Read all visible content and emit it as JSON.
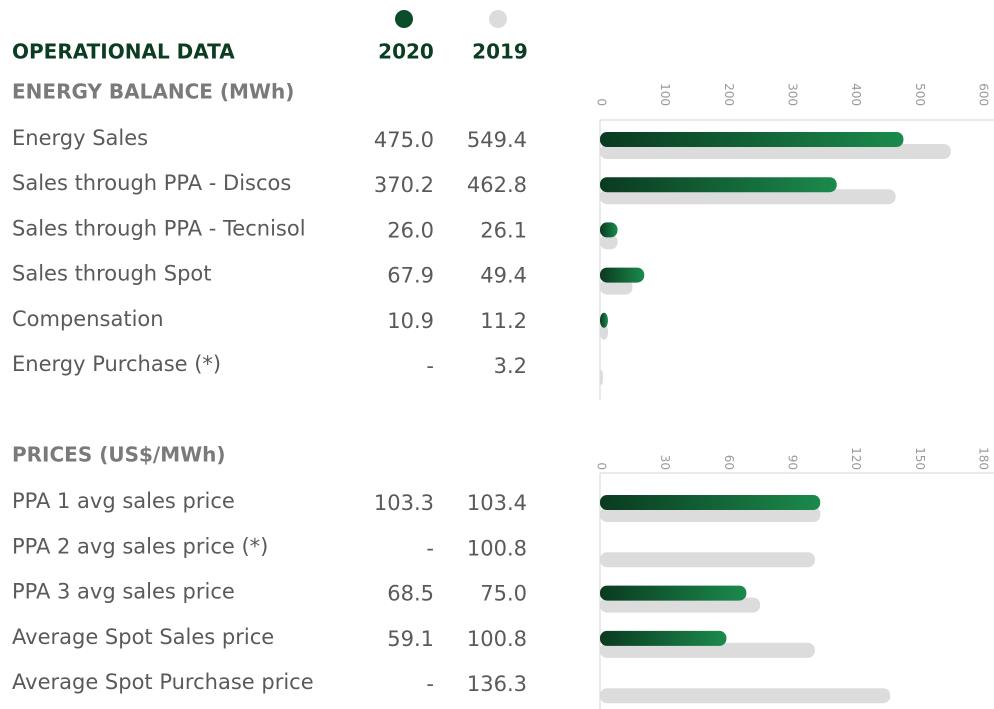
{
  "heading": "OPERATIONAL DATA",
  "legend": [
    {
      "name": "2020",
      "color": "#0b4d2a"
    },
    {
      "name": "2019",
      "color": "#dcdcdc"
    }
  ],
  "chart_data": [
    {
      "type": "bar",
      "orientation": "horizontal",
      "title": "ENERGY BALANCE (MWh)",
      "categories": [
        "Energy Sales",
        "Sales through PPA - Discos",
        "Sales through PPA - Tecnisol",
        "Sales through Spot",
        "Compensation",
        "Energy Purchase (*)"
      ],
      "series": [
        {
          "values": [
            475.0,
            370.2,
            26.0,
            67.9,
            10.9,
            null
          ],
          "value_labels": [
            "475.0",
            "370.2",
            "26.0",
            "67.9",
            "10.9",
            "-"
          ]
        },
        {
          "values": [
            549.4,
            462.8,
            26.1,
            49.4,
            11.2,
            3.2
          ],
          "value_labels": [
            "549.4",
            "462.8",
            "26.1",
            "49.4",
            "11.2",
            "3.2"
          ]
        }
      ],
      "xlim": [
        0,
        600
      ],
      "xticks": [
        0,
        100,
        200,
        300,
        400,
        500,
        600
      ]
    },
    {
      "type": "bar",
      "orientation": "horizontal",
      "title": "PRICES (US$/MWh)",
      "categories": [
        "PPA 1 avg sales price",
        "PPA 2 avg sales price (*)",
        "PPA 3 avg sales price",
        "Average Spot Sales price",
        "Average Spot Purchase price"
      ],
      "series": [
        {
          "values": [
            103.3,
            null,
            68.5,
            59.1,
            null
          ],
          "value_labels": [
            "103.3",
            "-",
            "68.5",
            "59.1",
            "-"
          ]
        },
        {
          "values": [
            103.4,
            100.8,
            75.0,
            100.8,
            136.3
          ],
          "value_labels": [
            "103.4",
            "100.8",
            "75.0",
            "100.8",
            "136.3"
          ]
        }
      ],
      "xlim": [
        0,
        180
      ],
      "xticks": [
        0,
        30,
        60,
        90,
        120,
        150,
        180
      ]
    }
  ]
}
